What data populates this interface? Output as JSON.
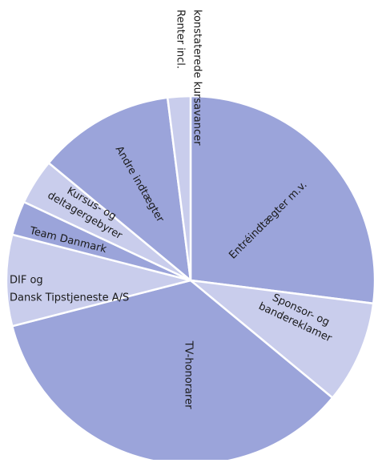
{
  "chart_data": {
    "type": "pie",
    "categories": [
      [
        "Entréindtægter m.v."
      ],
      [
        "Sponsor- og",
        "bandereklamer"
      ],
      [
        "TV-honorarer"
      ],
      [
        "DIF og",
        "Dansk Tipstjeneste A/S"
      ],
      [
        "Team Danmark"
      ],
      [
        "Kursus- og",
        "deltagergebyrer"
      ],
      [
        "Andre indtægter"
      ],
      [
        "Renter incl.",
        "konstaterede kursavancer"
      ]
    ],
    "values": [
      27,
      9,
      35,
      8,
      3,
      4,
      12,
      2
    ],
    "colors": [
      "#9ba4da",
      "#c9cdec",
      "#9ba4da",
      "#c9cdec",
      "#9ba4da",
      "#c9cdec",
      "#9ba4da",
      "#c9cdec"
    ]
  }
}
